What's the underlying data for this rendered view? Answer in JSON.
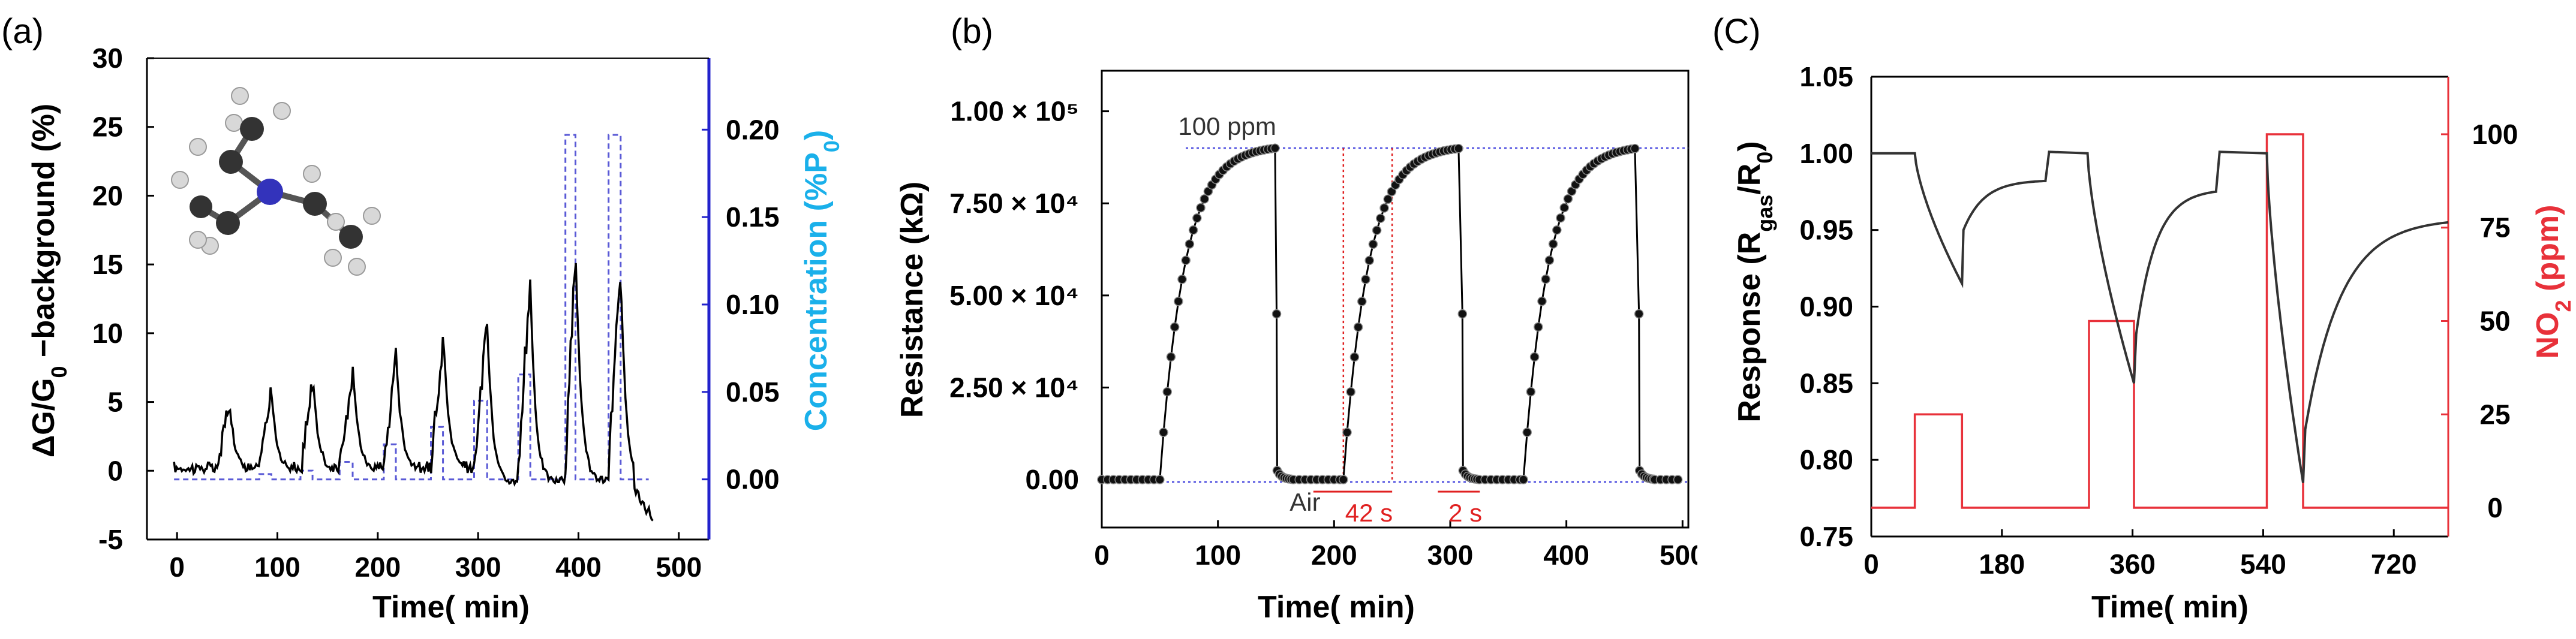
{
  "chart_data": [
    {
      "type": "line",
      "panel_label": "(a)",
      "xlabel": "Time( min)",
      "ylabel": "ΔG/G0 −background (%)",
      "y2label": "Concentration (%P0)",
      "xlim": [
        -30,
        530
      ],
      "ylim": [
        -5,
        30
      ],
      "y2lim": [
        -0.0344,
        0.2409
      ],
      "x_ticks": [
        "0",
        "100",
        "200",
        "300",
        "400",
        "500"
      ],
      "y_ticks": [
        "-5",
        "0",
        "5",
        "10",
        "15",
        "20",
        "25",
        "30"
      ],
      "y2_ticks": [
        "0.00",
        "0.05",
        "0.10",
        "0.15",
        "0.20"
      ],
      "colors": {
        "response": "#000000",
        "concentration": "#5a5ad6",
        "right_axis": "#1ab0ea"
      },
      "pulses": [
        {
          "start": 40,
          "end": 52,
          "peak": 5.8,
          "conc": 0.0
        },
        {
          "start": 82,
          "end": 94,
          "peak": 6.2,
          "conc": 0.003
        },
        {
          "start": 123,
          "end": 135,
          "peak": 7.6,
          "conc": 0.005
        },
        {
          "start": 162,
          "end": 175,
          "peak": 8.3,
          "conc": 0.01
        },
        {
          "start": 206,
          "end": 218,
          "peak": 9.2,
          "conc": 0.02
        },
        {
          "start": 253,
          "end": 265,
          "peak": 11.0,
          "conc": 0.03
        },
        {
          "start": 296,
          "end": 309,
          "peak": 12.7,
          "conc": 0.045
        },
        {
          "start": 340,
          "end": 352,
          "peak": 15.0,
          "conc": 0.06
        },
        {
          "start": 387,
          "end": 397,
          "peak": 18.0,
          "conc": 0.197
        },
        {
          "start": 430,
          "end": 442,
          "peak": 16.0,
          "conc": 0.197
        }
      ]
    },
    {
      "type": "scatter",
      "panel_label": "(b)",
      "xlabel": "Time( min)",
      "ylabel": "Resistance (kΩ)",
      "xlim": [
        0,
        505
      ],
      "ylim": [
        -13000,
        111000
      ],
      "x_ticks": [
        "0",
        "100",
        "200",
        "300",
        "400",
        "500"
      ],
      "y_ticks": [
        "0.00",
        "2.50 × 10⁴",
        "5.00 × 10⁴",
        "7.50 × 10⁴",
        "1.00 × 10⁵"
      ],
      "baseline": 0,
      "plateau": 90000,
      "cycles": [
        {
          "on": 50,
          "off": 150
        },
        {
          "on": 208,
          "off": 310
        },
        {
          "on": 363,
          "off": 462
        }
      ],
      "annotations": [
        "100 ppm",
        "Air",
        "42 s",
        "2 s"
      ],
      "colors": {
        "points": "#000000",
        "guide": "#4a4adf",
        "marker": "#e02020"
      }
    },
    {
      "type": "line",
      "panel_label": "(C)",
      "xlabel": "Time( min)",
      "ylabel": "Response (Rgas/R0)",
      "y2label": "NO2 (ppm)",
      "xlim": [
        0,
        795
      ],
      "ylim": [
        0.75,
        1.05
      ],
      "y2lim": [
        -7.7,
        115.4
      ],
      "x_ticks": [
        "0",
        "180",
        "360",
        "540",
        "720"
      ],
      "y_ticks": [
        "0.75",
        "0.80",
        "0.85",
        "0.90",
        "0.95",
        "1.00",
        "1.05"
      ],
      "y2_ticks": [
        "0",
        "25",
        "50",
        "75",
        "100"
      ],
      "no2_steps": [
        {
          "start": 0,
          "end": 60,
          "ppm": 0
        },
        {
          "start": 60,
          "end": 125,
          "ppm": 25
        },
        {
          "start": 125,
          "end": 300,
          "ppm": 0
        },
        {
          "start": 300,
          "end": 362,
          "ppm": 50
        },
        {
          "start": 362,
          "end": 545,
          "ppm": 0
        },
        {
          "start": 545,
          "end": 595,
          "ppm": 100
        },
        {
          "start": 595,
          "end": 795,
          "ppm": 0
        }
      ],
      "response_points": [
        [
          0,
          1.0
        ],
        [
          60,
          1.0
        ],
        [
          125,
          0.915
        ],
        [
          127,
          0.95
        ],
        [
          240,
          0.982
        ],
        [
          245,
          1.001
        ],
        [
          298,
          1.0
        ],
        [
          362,
          0.85
        ],
        [
          365,
          0.882
        ],
        [
          475,
          0.975
        ],
        [
          480,
          1.001
        ],
        [
          545,
          1.0
        ],
        [
          595,
          0.785
        ],
        [
          598,
          0.82
        ],
        [
          795,
          0.955
        ]
      ],
      "colors": {
        "response": "#333333",
        "no2": "#e8313a",
        "right_axis": "#e8313a"
      }
    }
  ]
}
